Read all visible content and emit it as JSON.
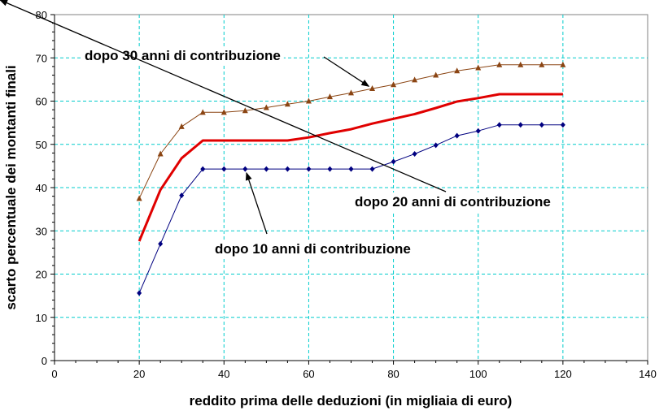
{
  "chart_data": {
    "type": "line",
    "xlabel": "reddito prima delle deduzioni (in migliaia di euro)",
    "ylabel": "scarto percentuale dei montanti finali",
    "xlim": [
      0,
      140
    ],
    "ylim": [
      0,
      80
    ],
    "xticks": [
      0,
      20,
      40,
      60,
      80,
      100,
      120,
      140
    ],
    "yticks": [
      0,
      10,
      20,
      30,
      40,
      50,
      60,
      70,
      80
    ],
    "grid": true,
    "x": [
      20,
      25,
      30,
      35,
      40,
      45,
      50,
      55,
      60,
      65,
      70,
      75,
      80,
      85,
      90,
      95,
      100,
      105,
      110,
      115,
      120
    ],
    "series": [
      {
        "key": "y30",
        "color": "#8B4513",
        "marker": "triangle",
        "values": [
          37.5,
          47.8,
          54.1,
          57.4,
          57.4,
          57.8,
          58.5,
          59.3,
          60.0,
          61.0,
          61.9,
          62.9,
          63.8,
          64.9,
          66.0,
          67.0,
          67.7,
          68.4,
          68.4,
          68.4,
          68.4
        ]
      },
      {
        "key": "y20",
        "color": "#E00000",
        "marker": "none",
        "values": [
          27.6,
          39.5,
          46.8,
          50.9,
          50.9,
          50.9,
          50.9,
          50.9,
          51.6,
          52.6,
          53.5,
          54.8,
          55.9,
          57.0,
          58.4,
          59.9,
          60.7,
          61.6,
          61.6,
          61.6,
          61.6
        ]
      },
      {
        "key": "y10",
        "color": "#000080",
        "marker": "diamond",
        "values": [
          15.6,
          27.0,
          38.2,
          44.3,
          44.3,
          44.3,
          44.3,
          44.3,
          44.3,
          44.3,
          44.3,
          44.3,
          46.0,
          47.8,
          49.8,
          52.0,
          53.1,
          54.5,
          54.5,
          54.5,
          54.5
        ]
      }
    ],
    "annotations": [
      {
        "text": "dopo 30 anni di contribuzione",
        "target_series": "y30",
        "target_x": 75
      },
      {
        "text": "dopo 20 anni di contribuzione",
        "target_series": "y20",
        "target_x": 82
      },
      {
        "text": "dopo 10 anni di contribuzione",
        "target_series": "y10",
        "target_x": 45
      }
    ]
  }
}
